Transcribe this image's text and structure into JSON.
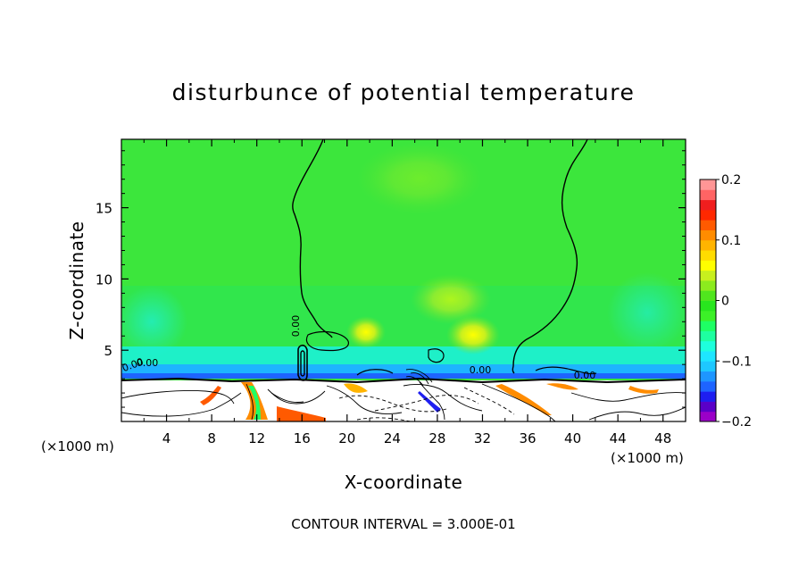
{
  "chart_data": {
    "type": "heatmap",
    "title": "disturbunce of potential temperature",
    "xlabel": "X-coordinate",
    "ylabel": "Z-coordinate",
    "x_unit_left": "(×1000 m)",
    "x_unit_right": "(×1000 m)",
    "xlim": [
      0,
      50
    ],
    "ylim": [
      0,
      19.8
    ],
    "x_ticks": [
      4,
      8,
      12,
      16,
      20,
      24,
      28,
      32,
      36,
      40,
      44,
      48
    ],
    "y_ticks": [
      5,
      10,
      15
    ],
    "contour_labels": [
      "0.00",
      "0.00",
      "0.00",
      "0.00",
      "0.00"
    ],
    "colorbar": {
      "min": -0.2,
      "max": 0.2,
      "tick_labels": [
        "0.2",
        "0.1",
        "0",
        "−0.1",
        "−0.2"
      ],
      "tick_values": [
        0.2,
        0.1,
        0.0,
        -0.1,
        -0.2
      ],
      "colors": [
        "#9b00c8",
        "#5a00c8",
        "#1e1ef0",
        "#1e64ff",
        "#1e96ff",
        "#1ec8ff",
        "#1ee6ff",
        "#1effdc",
        "#1effa0",
        "#1eff64",
        "#3cf028",
        "#28e61e",
        "#50e61e",
        "#8ceb1e",
        "#c8f01e",
        "#ffff00",
        "#ffdc00",
        "#ffb400",
        "#ff8c00",
        "#ff5a00",
        "#ff2800",
        "#f01e1e",
        "#ff6464",
        "#ff9696"
      ]
    },
    "footer": "CONTOUR INTERVAL = 3.000E-01"
  }
}
